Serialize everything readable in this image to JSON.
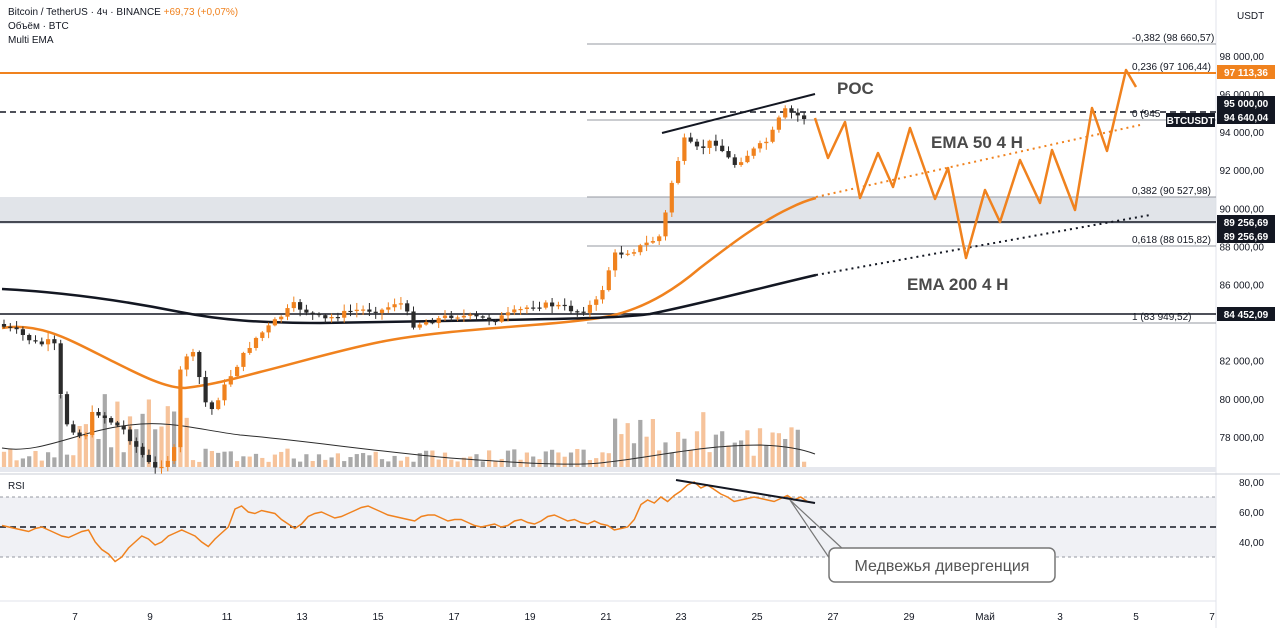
{
  "legend": {
    "title": "Bitcoin / TetherUS · 4ч · BINANCE",
    "change": "+69,73 (+0,07%)",
    "line2": "Объём · BTC",
    "line3": "Multi EMA"
  },
  "currency": "USDT",
  "colors": {
    "up": "#f0821e",
    "down": "#2b2b2b",
    "ema50": "#f0821e",
    "ema200": "#131722",
    "vol_up": "#f4b88a",
    "vol_down": "#9a9a9a",
    "zone": "#d9dde3",
    "rsi": "#f0821e"
  },
  "chart_data": {
    "type": "candlestick",
    "price_axis": {
      "ticks": [
        "98 000,00",
        "96 000,00",
        "94 000,00",
        "92 000,00",
        "90 000,00",
        "88 000,00",
        "86 000,00",
        "82 000,00",
        "80 000,00",
        "78 000,00"
      ],
      "range": [
        76500,
        99600
      ]
    },
    "x_axis": {
      "ticks": [
        "7",
        "9",
        "11",
        "13",
        "15",
        "17",
        "19",
        "21",
        "23",
        "25",
        "27",
        "29",
        "Май",
        "3",
        "5",
        "7"
      ]
    },
    "fib_levels": [
      {
        "label": "-0,382 (98 660,57)",
        "value": 98660.57
      },
      {
        "label": "0,236 (97 106,44)",
        "value": 97106.44
      },
      {
        "label": "0 (945",
        "value": 94640
      },
      {
        "label": "0,382 (90 527,98)",
        "value": 90527.98
      },
      {
        "label": "0,618 (88 015,82)",
        "value": 88015.82
      },
      {
        "label": "1 (83 949,52)",
        "value": 83949.52
      }
    ],
    "price_tags": [
      {
        "label": "97 113,36",
        "value": 97113.36,
        "color": "#f0821e"
      },
      {
        "label": "95 000,00",
        "value": 95000,
        "color": "#131722"
      },
      {
        "label": "BTCUSDT",
        "value": 94640,
        "color": "#131722"
      },
      {
        "label": "94 640,04",
        "value": 94640.04,
        "color": "#131722"
      },
      {
        "label": "89 256,69",
        "value": 89256.69,
        "color": "#131722"
      },
      {
        "label": "89 256,69",
        "value": 89256.69,
        "color": "#131722"
      },
      {
        "label": "84 452,09",
        "value": 84452.09,
        "color": "#131722"
      }
    ],
    "annotations": {
      "poc": "POC",
      "ema50": "EMA 50 4 H",
      "ema200": "EMA 200 4 H",
      "divergence": "Медвежья дивергенция"
    },
    "rsi": {
      "label": "RSI",
      "ticks": [
        "80,00",
        "60,00",
        "40,00"
      ],
      "range": [
        24,
        84
      ],
      "levels": [
        70,
        50,
        30
      ],
      "values": [
        51,
        50,
        49,
        48,
        47,
        49,
        50,
        48,
        46,
        44,
        43,
        45,
        47,
        48,
        40,
        35,
        32,
        27,
        30,
        36,
        40,
        44,
        42,
        38,
        40,
        44,
        46,
        48,
        46,
        44,
        40,
        37,
        42,
        46,
        50,
        62,
        64,
        60,
        59,
        61,
        60,
        59,
        55,
        52,
        49,
        52,
        57,
        59,
        60,
        58,
        56,
        57,
        59,
        61,
        63,
        64,
        62,
        60,
        58,
        57,
        56,
        55,
        54,
        57,
        58,
        58,
        56,
        54,
        55,
        55,
        53,
        51,
        50,
        51,
        52,
        50,
        51,
        54,
        55,
        53,
        52,
        54,
        57,
        58,
        56,
        54,
        55,
        53,
        52,
        54,
        52,
        51,
        48,
        49,
        50,
        55,
        65,
        68,
        66,
        70,
        67,
        71,
        74,
        78,
        80,
        76,
        78,
        75,
        72,
        70,
        67,
        68,
        69,
        70,
        69,
        68,
        67,
        69,
        71,
        68,
        70,
        67,
        66
      ]
    }
  }
}
